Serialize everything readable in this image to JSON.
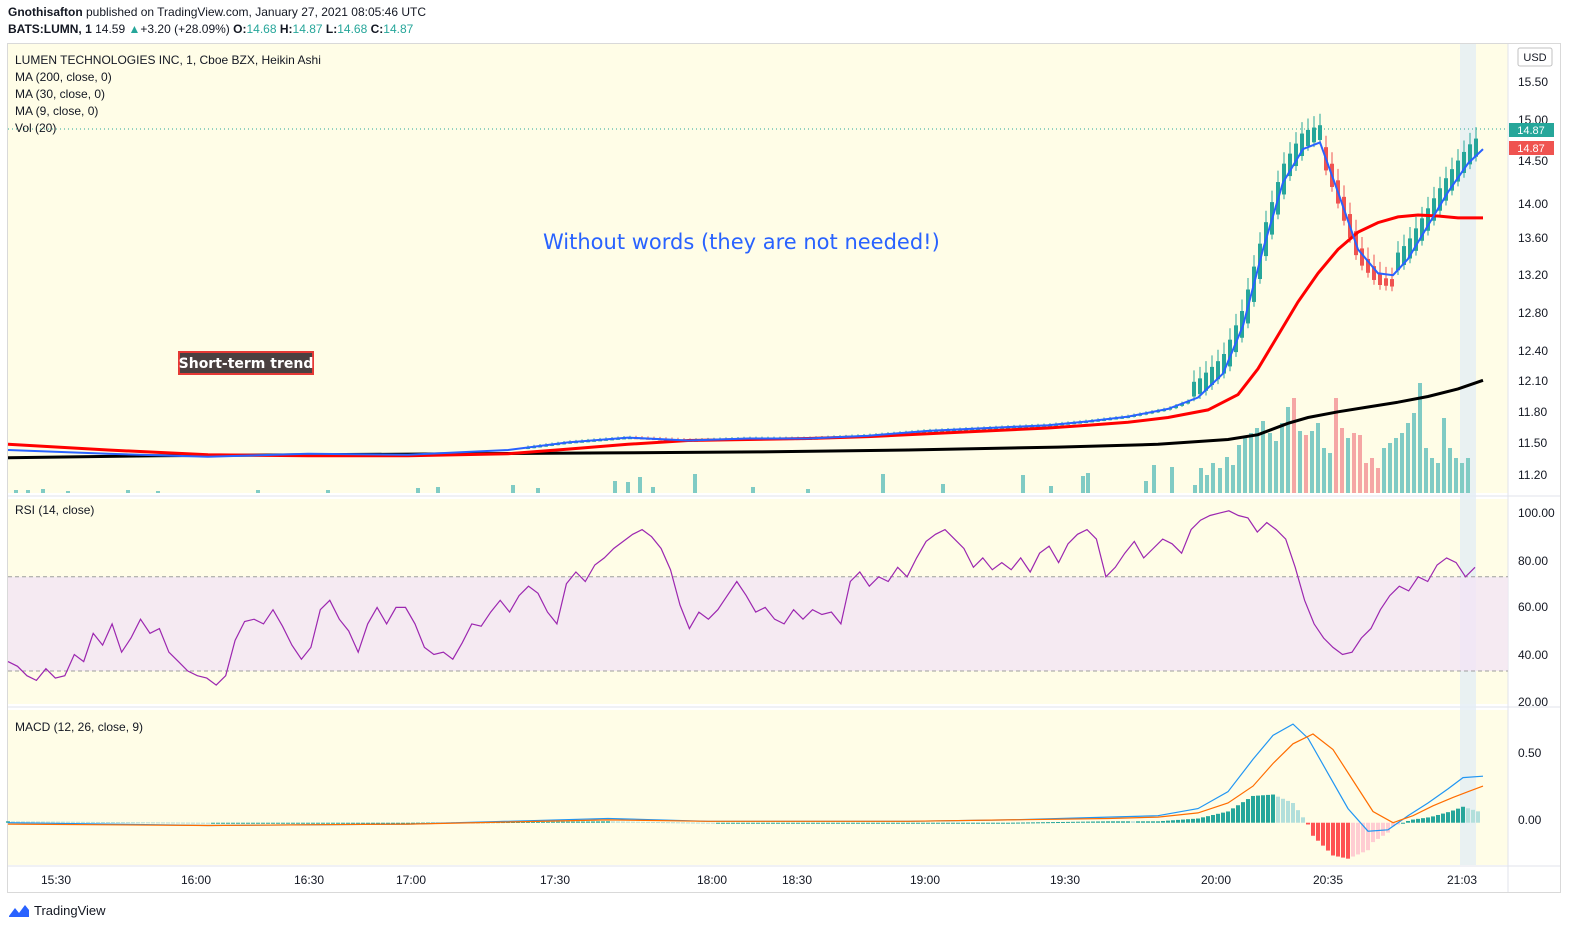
{
  "header": {
    "author": "Gnothisafton",
    "published": "published on TradingView.com, January 27, 2021 08:05:46 UTC",
    "symbol": "BATS:LUMN, 1",
    "last": "14.59",
    "change": "+3.20 (+28.09%)",
    "o_label": "O:",
    "o": "14.68",
    "h_label": "H:",
    "h": "14.87",
    "l_label": "L:",
    "l": "14.68",
    "c_label": "C:",
    "c": "14.87"
  },
  "legend": {
    "title": "LUMEN TECHNOLOGIES INC, 1, Cboe BZX, Heikin Ashi",
    "ma200": "MA (200, close, 0)",
    "ma30": "MA (30, close, 0)",
    "ma9": "MA (9, close, 0)",
    "vol": "Vol (20)",
    "rsi": "RSI (14, close)",
    "macd": "MACD (12, 26, close, 9)"
  },
  "annotations": {
    "headline": "Without words (they are not needed!)",
    "trend_label": "Short-term trend"
  },
  "currency": "USD",
  "price_tags": [
    "14.87",
    "14.87"
  ],
  "footer_logo": "TradingView",
  "colors": {
    "pane_bg": "#fffde7",
    "up": "#26a69a",
    "down": "#ef5350",
    "ma9": "#2962ff",
    "ma30": "#ff0000",
    "ma200": "#000000",
    "rsi": "#9c27b0",
    "macd": "#2196f3",
    "signal": "#ff6d00",
    "headline": "#2962ff"
  },
  "chart_data": [
    {
      "type": "candlestick",
      "title": "LUMEN TECHNOLOGIES INC, 1, Cboe BZX, Heikin Ashi",
      "x_ticks": [
        "15:30",
        "16:00",
        "16:30",
        "17:00",
        "17:30",
        "18:00",
        "18:30",
        "19:00",
        "19:30",
        "20:00",
        "20:35",
        "21:03"
      ],
      "y_ticks": [
        "15.50",
        "15.00",
        "14.50",
        "14.00",
        "13.60",
        "13.20",
        "12.80",
        "12.40",
        "12.10",
        "11.80",
        "11.50",
        "11.20"
      ],
      "ylim": [
        11.05,
        15.75
      ],
      "series": [
        {
          "name": "MA (9, close, 0)",
          "points": [
            [
              0,
              11.5
            ],
            [
              100,
              11.46
            ],
            [
              200,
              11.43
            ],
            [
              300,
              11.46
            ],
            [
              400,
              11.45
            ],
            [
              500,
              11.5
            ],
            [
              560,
              11.58
            ],
            [
              620,
              11.63
            ],
            [
              680,
              11.6
            ],
            [
              740,
              11.62
            ],
            [
              800,
              11.62
            ],
            [
              860,
              11.65
            ],
            [
              920,
              11.7
            ],
            [
              980,
              11.73
            ],
            [
              1040,
              11.76
            ],
            [
              1080,
              11.8
            ],
            [
              1120,
              11.85
            ],
            [
              1160,
              11.93
            ],
            [
              1190,
              12.05
            ],
            [
              1215,
              12.3
            ],
            [
              1235,
              12.8
            ],
            [
              1255,
              13.6
            ],
            [
              1275,
              14.3
            ],
            [
              1295,
              14.65
            ],
            [
              1312,
              14.72
            ],
            [
              1330,
              14.2
            ],
            [
              1350,
              13.6
            ],
            [
              1370,
              13.35
            ],
            [
              1385,
              13.33
            ],
            [
              1400,
              13.5
            ],
            [
              1420,
              13.85
            ],
            [
              1440,
              14.2
            ],
            [
              1460,
              14.5
            ],
            [
              1475,
              14.65
            ]
          ]
        },
        {
          "name": "MA (30, close, 0)",
          "points": [
            [
              0,
              11.56
            ],
            [
              100,
              11.5
            ],
            [
              200,
              11.45
            ],
            [
              300,
              11.44
            ],
            [
              400,
              11.44
            ],
            [
              500,
              11.46
            ],
            [
              560,
              11.51
            ],
            [
              620,
              11.56
            ],
            [
              680,
              11.6
            ],
            [
              740,
              11.61
            ],
            [
              800,
              11.62
            ],
            [
              860,
              11.64
            ],
            [
              920,
              11.67
            ],
            [
              980,
              11.7
            ],
            [
              1040,
              11.73
            ],
            [
              1080,
              11.76
            ],
            [
              1120,
              11.79
            ],
            [
              1160,
              11.84
            ],
            [
              1200,
              11.92
            ],
            [
              1230,
              12.08
            ],
            [
              1250,
              12.35
            ],
            [
              1270,
              12.7
            ],
            [
              1290,
              13.05
            ],
            [
              1310,
              13.35
            ],
            [
              1330,
              13.6
            ],
            [
              1350,
              13.78
            ],
            [
              1370,
              13.88
            ],
            [
              1390,
              13.94
            ],
            [
              1410,
              13.96
            ],
            [
              1430,
              13.95
            ],
            [
              1450,
              13.93
            ],
            [
              1475,
              13.93
            ]
          ]
        },
        {
          "name": "MA (200, close, 0)",
          "points": [
            [
              0,
              11.42
            ],
            [
              150,
              11.44
            ],
            [
              300,
              11.45
            ],
            [
              450,
              11.46
            ],
            [
              600,
              11.47
            ],
            [
              750,
              11.48
            ],
            [
              900,
              11.5
            ],
            [
              1050,
              11.53
            ],
            [
              1150,
              11.56
            ],
            [
              1220,
              11.61
            ],
            [
              1250,
              11.66
            ],
            [
              1280,
              11.78
            ],
            [
              1300,
              11.84
            ],
            [
              1330,
              11.9
            ],
            [
              1360,
              11.95
            ],
            [
              1390,
              12.0
            ],
            [
              1420,
              12.06
            ],
            [
              1450,
              12.14
            ],
            [
              1475,
              12.23
            ]
          ]
        }
      ],
      "volume_bars": [
        [
          8,
          3
        ],
        [
          20,
          3
        ],
        [
          35,
          4
        ],
        [
          60,
          2
        ],
        [
          120,
          3
        ],
        [
          150,
          2
        ],
        [
          250,
          3
        ],
        [
          320,
          3
        ],
        [
          410,
          5
        ],
        [
          430,
          6
        ],
        [
          505,
          8
        ],
        [
          530,
          5
        ],
        [
          607,
          12
        ],
        [
          620,
          11
        ],
        [
          632,
          16
        ],
        [
          645,
          6
        ],
        [
          687,
          19
        ],
        [
          745,
          6
        ],
        [
          800,
          4
        ],
        [
          875,
          19
        ],
        [
          935,
          9
        ],
        [
          1015,
          18
        ],
        [
          1043,
          7
        ],
        [
          1075,
          17
        ],
        [
          1080,
          20
        ],
        [
          1138,
          12
        ],
        [
          1146,
          28
        ],
        [
          1164,
          26
        ],
        [
          1187,
          8
        ],
        [
          1193,
          25
        ],
        [
          1199,
          18
        ],
        [
          1205,
          30
        ],
        [
          1212,
          25
        ],
        [
          1219,
          36
        ],
        [
          1225,
          28
        ],
        [
          1231,
          48
        ],
        [
          1237,
          55
        ],
        [
          1243,
          60
        ],
        [
          1249,
          65
        ],
        [
          1255,
          72
        ],
        [
          1262,
          60
        ],
        [
          1268,
          52
        ],
        [
          1274,
          70
        ],
        [
          1280,
          86
        ],
        [
          1286,
          95
        ],
        [
          1292,
          62
        ],
        [
          1298,
          58
        ],
        [
          1304,
          62
        ],
        [
          1310,
          70
        ],
        [
          1316,
          45
        ],
        [
          1322,
          40
        ],
        [
          1328,
          95
        ],
        [
          1334,
          65
        ],
        [
          1340,
          55
        ],
        [
          1346,
          60
        ],
        [
          1352,
          58
        ],
        [
          1358,
          30
        ],
        [
          1364,
          35
        ],
        [
          1370,
          25
        ],
        [
          1376,
          45
        ],
        [
          1382,
          50
        ],
        [
          1388,
          55
        ],
        [
          1394,
          60
        ],
        [
          1400,
          70
        ],
        [
          1406,
          80
        ],
        [
          1412,
          110
        ],
        [
          1418,
          45
        ],
        [
          1424,
          35
        ],
        [
          1430,
          30
        ],
        [
          1436,
          75
        ],
        [
          1442,
          45
        ],
        [
          1448,
          35
        ],
        [
          1454,
          30
        ],
        [
          1460,
          35
        ]
      ],
      "volume_down": [
        630,
        1286,
        1298,
        1328,
        1334,
        1346,
        1352,
        1358,
        1364,
        1370
      ]
    },
    {
      "type": "line",
      "title": "RSI (14, close)",
      "y_ticks": [
        "100.00",
        "80.00",
        "60.00",
        "40.00",
        "20.00"
      ],
      "ylim": [
        16,
        103
      ],
      "band": [
        30,
        70
      ],
      "values": [
        34,
        32,
        28,
        26,
        31,
        27,
        28,
        37,
        34,
        46,
        41,
        50,
        38,
        44,
        52,
        46,
        48,
        38,
        34,
        30,
        28,
        27,
        24,
        28,
        43,
        51,
        52,
        50,
        56,
        49,
        41,
        35,
        40,
        56,
        60,
        52,
        47,
        38,
        50,
        57,
        50,
        57,
        57,
        50,
        40,
        37,
        38,
        35,
        42,
        50,
        49,
        55,
        60,
        55,
        62,
        66,
        63,
        55,
        50,
        67,
        72,
        68,
        75,
        78,
        82,
        85,
        88,
        90,
        87,
        82,
        73,
        58,
        48,
        55,
        52,
        56,
        62,
        68,
        62,
        55,
        57,
        52,
        50,
        56,
        52,
        56,
        54,
        55,
        50,
        68,
        72,
        66,
        70,
        68,
        74,
        70,
        78,
        85,
        88,
        90,
        86,
        82,
        74,
        78,
        73,
        76,
        73,
        78,
        72,
        80,
        83,
        76,
        84,
        88,
        90,
        86,
        70,
        74,
        80,
        85,
        78,
        82,
        86,
        84,
        80,
        90,
        94,
        96,
        97,
        98,
        96,
        95,
        89,
        93,
        90,
        86,
        74,
        60,
        50,
        44,
        40,
        37,
        38,
        44,
        48,
        56,
        62,
        66,
        64,
        70,
        68,
        75,
        78,
        76,
        70,
        74
      ]
    },
    {
      "type": "line",
      "title": "MACD (12, 26, close, 9)",
      "y_ticks": [
        "0.50",
        "0.00"
      ],
      "ylim": [
        -0.3,
        0.8
      ],
      "series": [
        {
          "name": "MACD",
          "points": [
            [
              0,
              0.0
            ],
            [
              200,
              -0.02
            ],
            [
              400,
              -0.01
            ],
            [
              600,
              0.03
            ],
            [
              700,
              0.01
            ],
            [
              900,
              0.01
            ],
            [
              1000,
              0.02
            ],
            [
              1100,
              0.04
            ],
            [
              1150,
              0.05
            ],
            [
              1190,
              0.1
            ],
            [
              1220,
              0.22
            ],
            [
              1245,
              0.45
            ],
            [
              1265,
              0.62
            ],
            [
              1285,
              0.7
            ],
            [
              1300,
              0.6
            ],
            [
              1320,
              0.35
            ],
            [
              1340,
              0.1
            ],
            [
              1360,
              -0.06
            ],
            [
              1380,
              -0.05
            ],
            [
              1400,
              0.05
            ],
            [
              1420,
              0.14
            ],
            [
              1440,
              0.24
            ],
            [
              1455,
              0.32
            ],
            [
              1475,
              0.33
            ]
          ]
        },
        {
          "name": "Signal",
          "points": [
            [
              0,
              -0.01
            ],
            [
              200,
              -0.02
            ],
            [
              400,
              -0.01
            ],
            [
              600,
              0.02
            ],
            [
              700,
              0.01
            ],
            [
              900,
              0.01
            ],
            [
              1000,
              0.02
            ],
            [
              1100,
              0.03
            ],
            [
              1150,
              0.04
            ],
            [
              1190,
              0.07
            ],
            [
              1220,
              0.14
            ],
            [
              1245,
              0.26
            ],
            [
              1265,
              0.42
            ],
            [
              1285,
              0.56
            ],
            [
              1305,
              0.63
            ],
            [
              1325,
              0.52
            ],
            [
              1345,
              0.3
            ],
            [
              1365,
              0.08
            ],
            [
              1385,
              0.0
            ],
            [
              1405,
              0.05
            ],
            [
              1425,
              0.12
            ],
            [
              1445,
              0.18
            ],
            [
              1460,
              0.22
            ],
            [
              1475,
              0.26
            ]
          ]
        }
      ]
    }
  ]
}
